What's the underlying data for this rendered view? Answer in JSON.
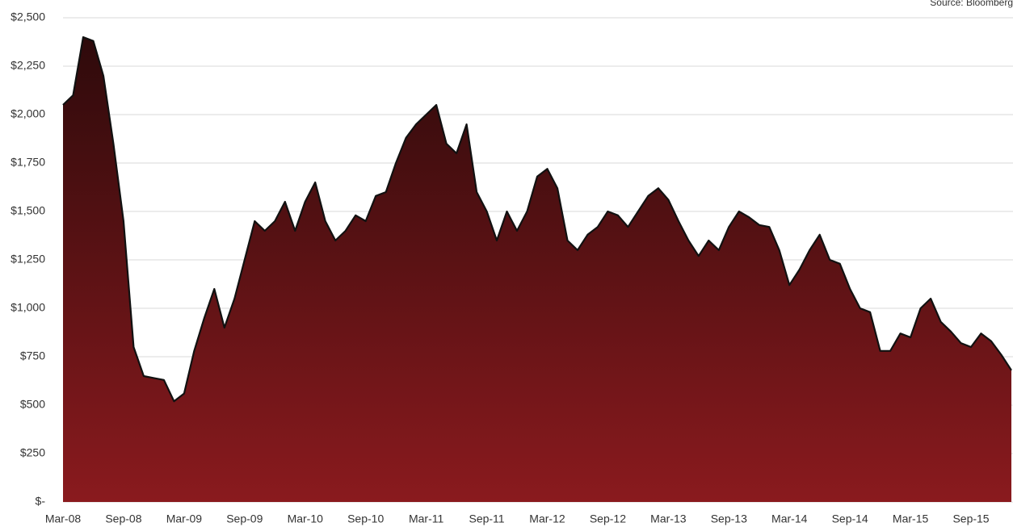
{
  "chart_data": {
    "type": "area",
    "source": "Source: Bloomberg",
    "x": [
      "2008-03",
      "2008-04",
      "2008-05",
      "2008-06",
      "2008-07",
      "2008-08",
      "2008-09",
      "2008-10",
      "2008-11",
      "2008-12",
      "2009-01",
      "2009-02",
      "2009-03",
      "2009-04",
      "2009-05",
      "2009-06",
      "2009-07",
      "2009-08",
      "2009-09",
      "2009-10",
      "2009-11",
      "2009-12",
      "2010-01",
      "2010-02",
      "2010-03",
      "2010-04",
      "2010-05",
      "2010-06",
      "2010-07",
      "2010-08",
      "2010-09",
      "2010-10",
      "2010-11",
      "2010-12",
      "2011-01",
      "2011-02",
      "2011-03",
      "2011-04",
      "2011-05",
      "2011-06",
      "2011-07",
      "2011-08",
      "2011-09",
      "2011-10",
      "2011-11",
      "2011-12",
      "2012-01",
      "2012-02",
      "2012-03",
      "2012-04",
      "2012-05",
      "2012-06",
      "2012-07",
      "2012-08",
      "2012-09",
      "2012-10",
      "2012-11",
      "2012-12",
      "2013-01",
      "2013-02",
      "2013-03",
      "2013-04",
      "2013-05",
      "2013-06",
      "2013-07",
      "2013-08",
      "2013-09",
      "2013-10",
      "2013-11",
      "2013-12",
      "2014-01",
      "2014-02",
      "2014-03",
      "2014-04",
      "2014-05",
      "2014-06",
      "2014-07",
      "2014-08",
      "2014-09",
      "2014-10",
      "2014-11",
      "2014-12",
      "2015-01",
      "2015-02",
      "2015-03",
      "2015-04",
      "2015-05",
      "2015-06",
      "2015-07",
      "2015-08",
      "2015-09",
      "2015-10",
      "2015-11",
      "2015-12",
      "2016-01"
    ],
    "values": [
      2050,
      2100,
      2400,
      2380,
      2200,
      1850,
      1450,
      800,
      650,
      640,
      630,
      520,
      560,
      780,
      950,
      1100,
      900,
      1050,
      1250,
      1450,
      1400,
      1450,
      1550,
      1400,
      1550,
      1650,
      1450,
      1350,
      1400,
      1480,
      1450,
      1580,
      1600,
      1750,
      1880,
      1950,
      2000,
      2050,
      1850,
      1800,
      1950,
      1600,
      1500,
      1350,
      1500,
      1400,
      1500,
      1680,
      1720,
      1620,
      1350,
      1300,
      1380,
      1420,
      1500,
      1480,
      1420,
      1500,
      1580,
      1620,
      1560,
      1450,
      1350,
      1270,
      1350,
      1300,
      1420,
      1500,
      1470,
      1430,
      1420,
      1300,
      1120,
      1200,
      1300,
      1380,
      1250,
      1230,
      1100,
      1000,
      980,
      780,
      780,
      870,
      850,
      1000,
      1050,
      930,
      880,
      820,
      800,
      870,
      830,
      760,
      680
    ],
    "color": "#8a1a1e",
    "line_color": "#111111",
    "xlim": [
      "2008-03",
      "2016-01"
    ],
    "xticks": [
      {
        "value": "2008-03",
        "label": "Mar-08"
      },
      {
        "value": "2008-09",
        "label": "Sep-08"
      },
      {
        "value": "2009-03",
        "label": "Mar-09"
      },
      {
        "value": "2009-09",
        "label": "Sep-09"
      },
      {
        "value": "2010-03",
        "label": "Mar-10"
      },
      {
        "value": "2010-09",
        "label": "Sep-10"
      },
      {
        "value": "2011-03",
        "label": "Mar-11"
      },
      {
        "value": "2011-09",
        "label": "Sep-11"
      },
      {
        "value": "2012-03",
        "label": "Mar-12"
      },
      {
        "value": "2012-09",
        "label": "Sep-12"
      },
      {
        "value": "2013-03",
        "label": "Mar-13"
      },
      {
        "value": "2013-09",
        "label": "Sep-13"
      },
      {
        "value": "2014-03",
        "label": "Mar-14"
      },
      {
        "value": "2014-09",
        "label": "Sep-14"
      },
      {
        "value": "2015-03",
        "label": "Mar-15"
      },
      {
        "value": "2015-09",
        "label": "Sep-15"
      }
    ],
    "ylim": [
      0,
      2500
    ],
    "yticks": [
      {
        "value": 0,
        "label": "$-"
      },
      {
        "value": 250,
        "label": "$250"
      },
      {
        "value": 500,
        "label": "$500"
      },
      {
        "value": 750,
        "label": "$750"
      },
      {
        "value": 1000,
        "label": "$1,000"
      },
      {
        "value": 1250,
        "label": "$1,250"
      },
      {
        "value": 1500,
        "label": "$1,500"
      },
      {
        "value": 1750,
        "label": "$1,750"
      },
      {
        "value": 2000,
        "label": "$2,000"
      },
      {
        "value": 2250,
        "label": "$2,250"
      },
      {
        "value": 2500,
        "label": "$2,500"
      }
    ],
    "grid": true
  }
}
